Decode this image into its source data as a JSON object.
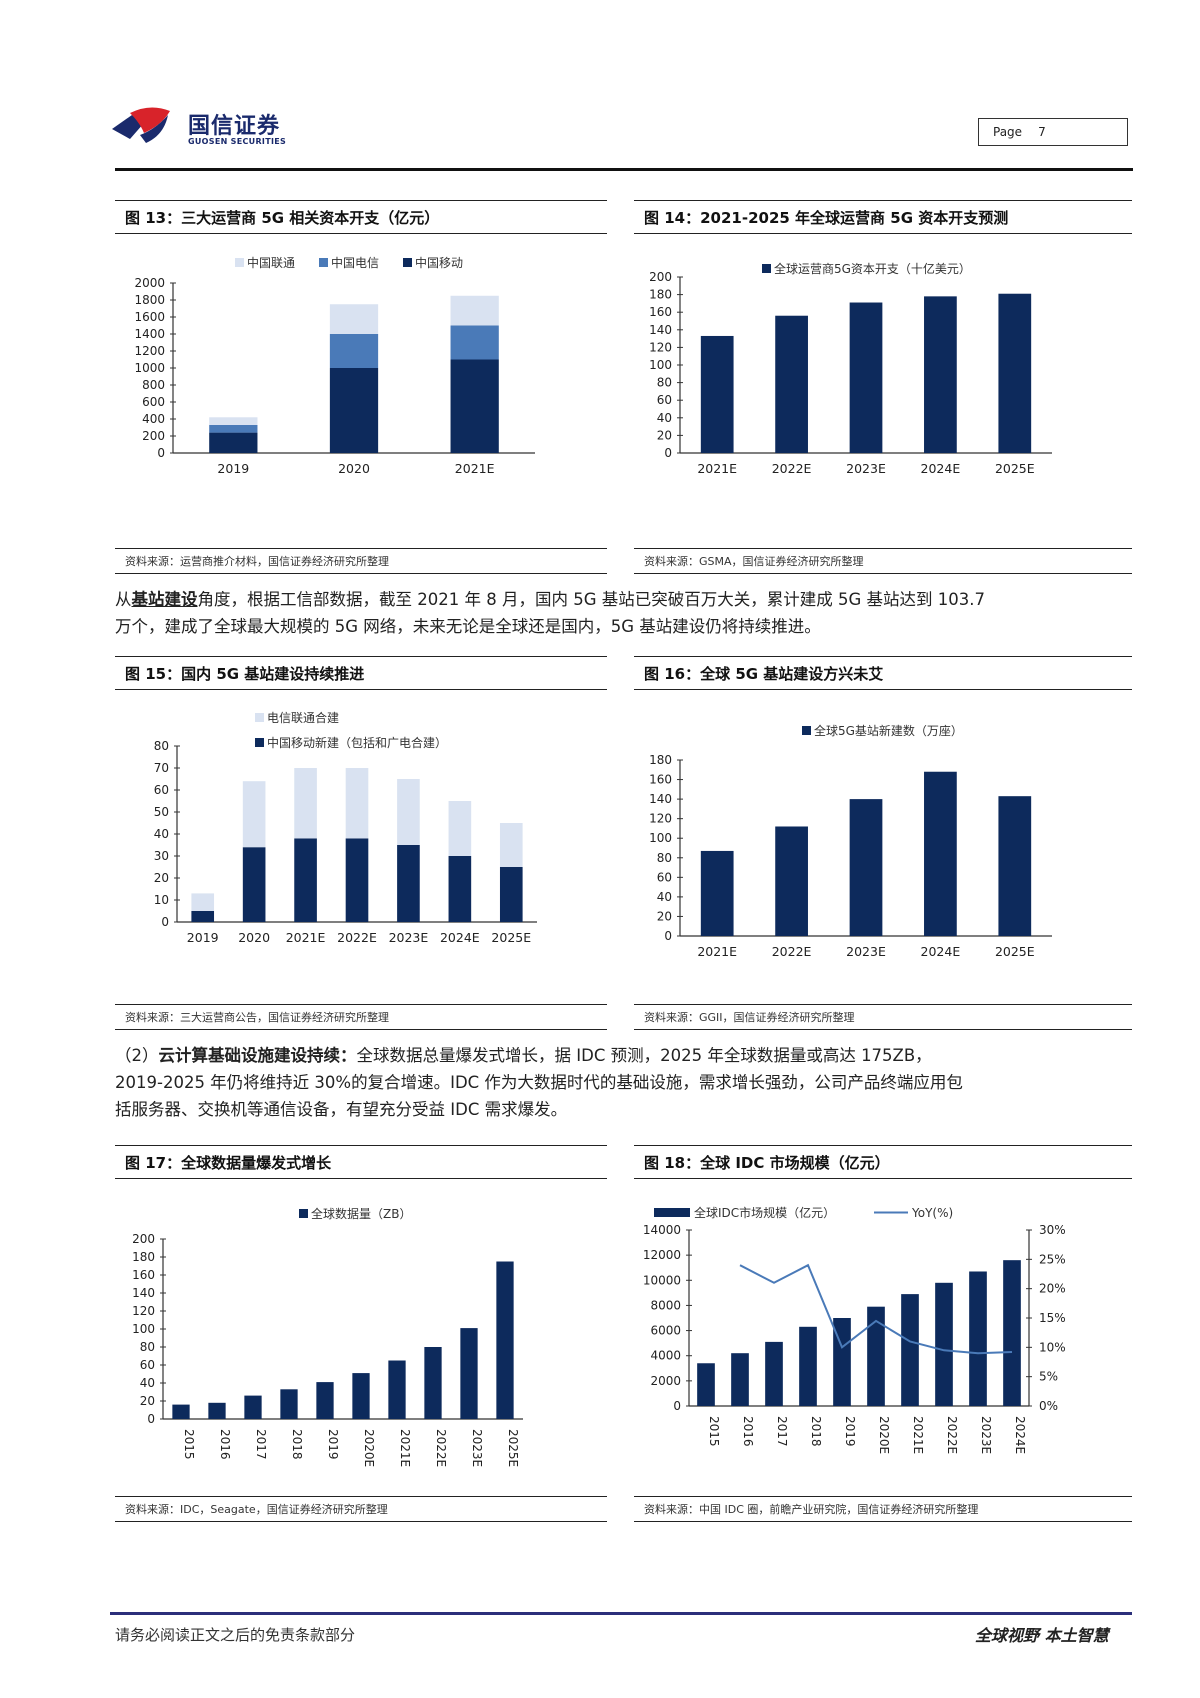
{
  "header": {
    "brand_cn": "国信证券",
    "brand_en": "GUOSEN SECURITIES",
    "page_label": "Page",
    "page_number": "7",
    "colors": {
      "brand_navy": "#1a2a6c",
      "brand_red": "#d8232a"
    }
  },
  "colors": {
    "dark": "#0d2a5c",
    "mid": "#4a7ab8",
    "light": "#d9e2f1",
    "line": "#4a7ab8"
  },
  "fig13": {
    "title": "图 13：三大运营商 5G 相关资本开支（亿元）",
    "source": "资料来源：运营商推介材料，国信证券经济研究所整理",
    "chart_data": {
      "type": "bar",
      "stacked": true,
      "categories": [
        "2019",
        "2020",
        "2021E"
      ],
      "series": [
        {
          "name": "中国移动",
          "values": [
            240,
            1000,
            1100
          ]
        },
        {
          "name": "中国电信",
          "values": [
            90,
            400,
            400
          ]
        },
        {
          "name": "中国联通",
          "values": [
            90,
            350,
            350
          ]
        }
      ],
      "ylim": [
        0,
        2000
      ],
      "yticks": [
        "0",
        "200",
        "400",
        "600",
        "800",
        "1000",
        "1200",
        "1400",
        "1600",
        "1800",
        "2000"
      ],
      "legend": [
        "中国联通",
        "中国电信",
        "中国移动"
      ],
      "legend_position": "top"
    }
  },
  "fig14": {
    "title": "图 14：2021-2025 年全球运营商 5G 资本开支预测",
    "source": "资料来源：GSMA，国信证券经济研究所整理",
    "chart_data": {
      "type": "bar",
      "categories": [
        "2021E",
        "2022E",
        "2023E",
        "2024E",
        "2025E"
      ],
      "series": [
        {
          "name": "全球运营商5G资本开支（十亿美元）",
          "values": [
            133,
            156,
            171,
            178,
            181
          ]
        }
      ],
      "ylim": [
        0,
        200
      ],
      "yticks": [
        "0",
        "20",
        "40",
        "60",
        "80",
        "100",
        "120",
        "140",
        "160",
        "180",
        "200"
      ],
      "legend_position": "top"
    }
  },
  "para1": {
    "prefix": "从",
    "bold": "基站建设",
    "rest1": "角度，根据工信部数据，截至 2021 年 8 月，国内 5G 基站已突破百万大关，累计建成 5G 基站达到 103.7",
    "rest2": "万个，建成了全球最大规模的 5G 网络，未来无论是全球还是国内，5G 基站建设仍将持续推进。"
  },
  "fig15": {
    "title": "图 15：国内 5G 基站建设持续推进",
    "source": "资料来源：三大运营商公告，国信证券经济研究所整理",
    "chart_data": {
      "type": "bar",
      "stacked": true,
      "categories": [
        "2019",
        "2020",
        "2021E",
        "2022E",
        "2023E",
        "2024E",
        "2025E"
      ],
      "series": [
        {
          "name": "中国移动新建（包括和广电合建）",
          "values": [
            5,
            34,
            38,
            38,
            35,
            30,
            25
          ]
        },
        {
          "name": "电信联通合建",
          "values": [
            8,
            30,
            32,
            32,
            30,
            25,
            20
          ]
        }
      ],
      "ylim": [
        0,
        80
      ],
      "yticks": [
        "0",
        "10",
        "20",
        "30",
        "40",
        "50",
        "60",
        "70",
        "80"
      ],
      "legend": [
        "电信联通合建",
        "中国移动新建（包括和广电合建）"
      ],
      "legend_position": "top"
    }
  },
  "fig16": {
    "title": "图 16：全球 5G 基站建设方兴未艾",
    "source": "资料来源：GGII，国信证券经济研究所整理",
    "chart_data": {
      "type": "bar",
      "categories": [
        "2021E",
        "2022E",
        "2023E",
        "2024E",
        "2025E"
      ],
      "series": [
        {
          "name": "全球5G基站新建数（万座）",
          "values": [
            87,
            112,
            140,
            168,
            143
          ]
        }
      ],
      "ylim": [
        0,
        180
      ],
      "yticks": [
        "0",
        "20",
        "40",
        "60",
        "80",
        "100",
        "120",
        "140",
        "160",
        "180"
      ],
      "legend_position": "top"
    }
  },
  "para2": {
    "lead": "（2）",
    "bold": "云计算基础设施建设持续：",
    "line1": "全球数据总量爆发式增长，据 IDC 预测，2025 年全球数据量或高达 175ZB，",
    "line2": "2019-2025 年仍将维持近 30%的复合增速。IDC 作为大数据时代的基础设施，需求增长强劲，公司产品终端应用包",
    "line3": "括服务器、交换机等通信设备，有望充分受益 IDC 需求爆发。"
  },
  "fig17": {
    "title": "图 17：全球数据量爆发式增长",
    "source": "资料来源：IDC，Seagate，国信证券经济研究所整理",
    "chart_data": {
      "type": "bar",
      "categories": [
        "2015",
        "2016",
        "2017",
        "2018",
        "2019",
        "2020E",
        "2021E",
        "2022E",
        "2023E",
        "2025E"
      ],
      "series": [
        {
          "name": "全球数据量（ZB）",
          "values": [
            16,
            18,
            26,
            33,
            41,
            51,
            65,
            80,
            101,
            175
          ]
        }
      ],
      "ylim": [
        0,
        200
      ],
      "yticks": [
        "0",
        "20",
        "40",
        "60",
        "80",
        "100",
        "120",
        "140",
        "160",
        "180",
        "200"
      ],
      "legend_position": "top"
    }
  },
  "fig18": {
    "title": "图 18：全球 IDC 市场规模（亿元）",
    "source": "资料来源：中国 IDC 圈，前瞻产业研究院，国信证券经济研究所整理",
    "chart_data": {
      "type": "bar",
      "categories": [
        "2015",
        "2016",
        "2017",
        "2018",
        "2019",
        "2020E",
        "2021E",
        "2022E",
        "2023E",
        "2024E"
      ],
      "series": [
        {
          "name": "全球IDC市场规模（亿元）",
          "type": "bar",
          "axis": "left",
          "values": [
            3400,
            4200,
            5100,
            6300,
            7000,
            7900,
            8900,
            9800,
            10700,
            11600
          ]
        },
        {
          "name": "YoY(%)",
          "type": "line",
          "axis": "right",
          "values": [
            null,
            24.0,
            21.0,
            24.0,
            10.0,
            14.5,
            11.0,
            9.5,
            9.0,
            9.2
          ]
        }
      ],
      "ylim": [
        0,
        14000
      ],
      "y2lim": [
        0,
        30
      ],
      "yticks": [
        "0",
        "2000",
        "4000",
        "6000",
        "8000",
        "10000",
        "12000",
        "14000"
      ],
      "y2ticks": [
        "0%",
        "5%",
        "10%",
        "15%",
        "20%",
        "25%",
        "30%"
      ],
      "legend_position": "top"
    }
  },
  "footer": {
    "left": "请务必阅读正文之后的免责条款部分",
    "right": "全球视野  本土智慧"
  }
}
